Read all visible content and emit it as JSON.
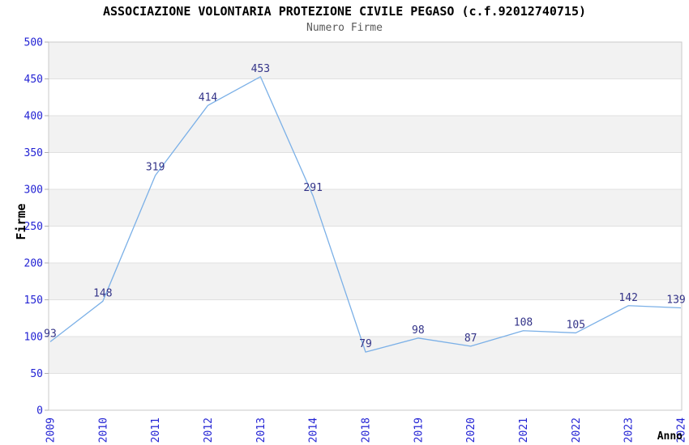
{
  "header": {
    "title": "ASSOCIAZIONE VOLONTARIA PROTEZIONE CIVILE PEGASO (c.f.92012740715)",
    "subtitle": "Numero Firme"
  },
  "chart_data": {
    "type": "line",
    "title": "ASSOCIAZIONE VOLONTARIA PROTEZIONE CIVILE PEGASO (c.f.92012740715)",
    "subtitle": "Numero Firme",
    "xlabel": "Anno",
    "ylabel": "Firme",
    "categories": [
      "2009",
      "2010",
      "2011",
      "2012",
      "2013",
      "2014",
      "2018",
      "2019",
      "2020",
      "2021",
      "2022",
      "2023",
      "2024"
    ],
    "values": [
      93,
      148,
      319,
      414,
      453,
      291,
      79,
      98,
      87,
      108,
      105,
      142,
      139
    ],
    "ylim": [
      0,
      500
    ],
    "ytick_step": 50,
    "grid": "horizontal-bands-alternating",
    "legend": "none",
    "colors": {
      "line": "#7bb0e7",
      "data_label": "#333388",
      "tick_label": "#2323d4",
      "band": "#f2f2f2",
      "grid_line": "#e0e0e0",
      "plot_border": "#c9c9c9",
      "tick_mark": "#b0b0b0",
      "subtitle": "#595959",
      "title": "#000000"
    }
  }
}
